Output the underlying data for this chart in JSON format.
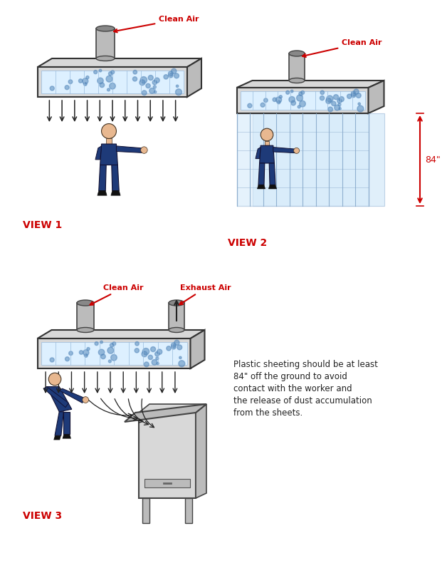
{
  "bg_color": "#ffffff",
  "red_color": "#cc0000",
  "blue_color": "#1e3a78",
  "blue_light": "#4a6bc4",
  "gray_color": "#aaaaaa",
  "gray_dark": "#666666",
  "gray_light": "#d8d8d8",
  "gray_mid": "#bbbbbb",
  "light_blue": "#b8d8f0",
  "very_light_blue": "#ddf0ff",
  "skin_color": "#e8b890",
  "arrow_color": "#333333",
  "filter_blue": "#5588bb",
  "plastic_blue": "#c0e0f8",
  "view1_label": "VIEW 1",
  "view2_label": "VIEW 2",
  "view3_label": "VIEW 3",
  "clean_air_label": "Clean Air",
  "exhaust_air_label": "Exhaust Air",
  "note_text": "Plastic sheeting should be at least\n84\" off the ground to avoid\ncontact with the worker and\nthe release of dust accumulation\nfrom the sheets.",
  "dim_label": "84\""
}
